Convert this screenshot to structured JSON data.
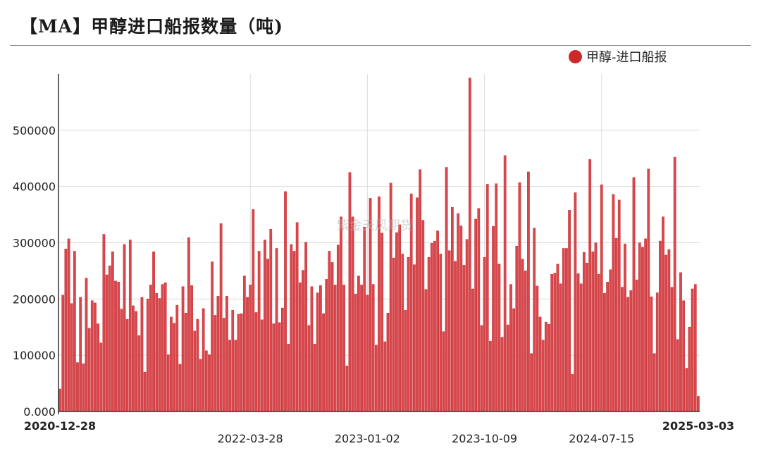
{
  "title": "【MA】甲醇进口船报数量（吨)",
  "watermark": "紫金天风期货",
  "colors": {
    "bar": "#d8474b",
    "bar_stroke": "#c73035",
    "legend_dot": "#cc2a2a",
    "grid": "#dcdcdc"
  },
  "chart_data": {
    "type": "bar",
    "series": [
      {
        "name": "甲醇-进口船报",
        "values": [
          40000,
          207000,
          289000,
          307000,
          192000,
          285000,
          87000,
          203000,
          85000,
          237000,
          148000,
          197000,
          193000,
          156000,
          122000,
          315000,
          243000,
          259000,
          284000,
          232000,
          230000,
          182000,
          297000,
          164000,
          305000,
          188000,
          178000,
          135000,
          203000,
          70000,
          200000,
          225000,
          284000,
          210000,
          201000,
          226000,
          229000,
          101000,
          168000,
          157000,
          189000,
          84000,
          222000,
          175000,
          309000,
          224000,
          143000,
          164000,
          93000,
          183000,
          108000,
          101000,
          266000,
          171000,
          205000,
          334000,
          166000,
          205000,
          127000,
          180000,
          127000,
          173000,
          174000,
          241000,
          203000,
          225000,
          359000,
          176000,
          285000,
          163000,
          305000,
          271000,
          324000,
          156000,
          290000,
          158000,
          184000,
          391000,
          120000,
          297000,
          285000,
          336000,
          229000,
          251000,
          301000,
          153000,
          222000,
          120000,
          211000,
          224000,
          174000,
          235000,
          285000,
          265000,
          225000,
          296000,
          346000,
          225000,
          81000,
          425000,
          346000,
          209000,
          241000,
          225000,
          328000,
          207000,
          379000,
          226000,
          118000,
          382000,
          317000,
          124000,
          175000,
          406000,
          273000,
          318000,
          332000,
          280000,
          180000,
          274000,
          387000,
          261000,
          380000,
          430000,
          340000,
          217000,
          274000,
          299000,
          303000,
          321000,
          280000,
          142000,
          434000,
          286000,
          363000,
          267000,
          352000,
          330000,
          260000,
          306000,
          593000,
          218000,
          342000,
          361000,
          153000,
          274000,
          404000,
          125000,
          329000,
          405000,
          262000,
          132000,
          455000,
          154000,
          226000,
          183000,
          294000,
          407000,
          271000,
          250000,
          426000,
          103000,
          326000,
          223000,
          168000,
          127000,
          159000,
          155000,
          244000,
          246000,
          262000,
          227000,
          290000,
          290000,
          358000,
          66000,
          389000,
          245000,
          227000,
          283000,
          264000,
          448000,
          284000,
          300000,
          244000,
          403000,
          210000,
          230000,
          252000,
          386000,
          308000,
          376000,
          221000,
          298000,
          203000,
          215000,
          416000,
          234000,
          300000,
          292000,
          307000,
          431000,
          204000,
          103000,
          211000,
          303000,
          346000,
          278000,
          288000,
          221000,
          452000,
          128000,
          247000,
          197000,
          77000,
          150000,
          218000,
          226000,
          27000
        ]
      }
    ],
    "x_start": "2020-12-28",
    "x_end": "2025-03-03",
    "xticks": [
      "2020-12-28",
      "2022-03-28",
      "2023-01-02",
      "2023-10-09",
      "2024-07-15",
      "2025-03-03"
    ],
    "yticks": [
      "0.000",
      "100000",
      "200000",
      "300000",
      "400000",
      "500000"
    ],
    "ylim": [
      0,
      600000
    ],
    "legend_position": "top-right",
    "grid": true
  }
}
